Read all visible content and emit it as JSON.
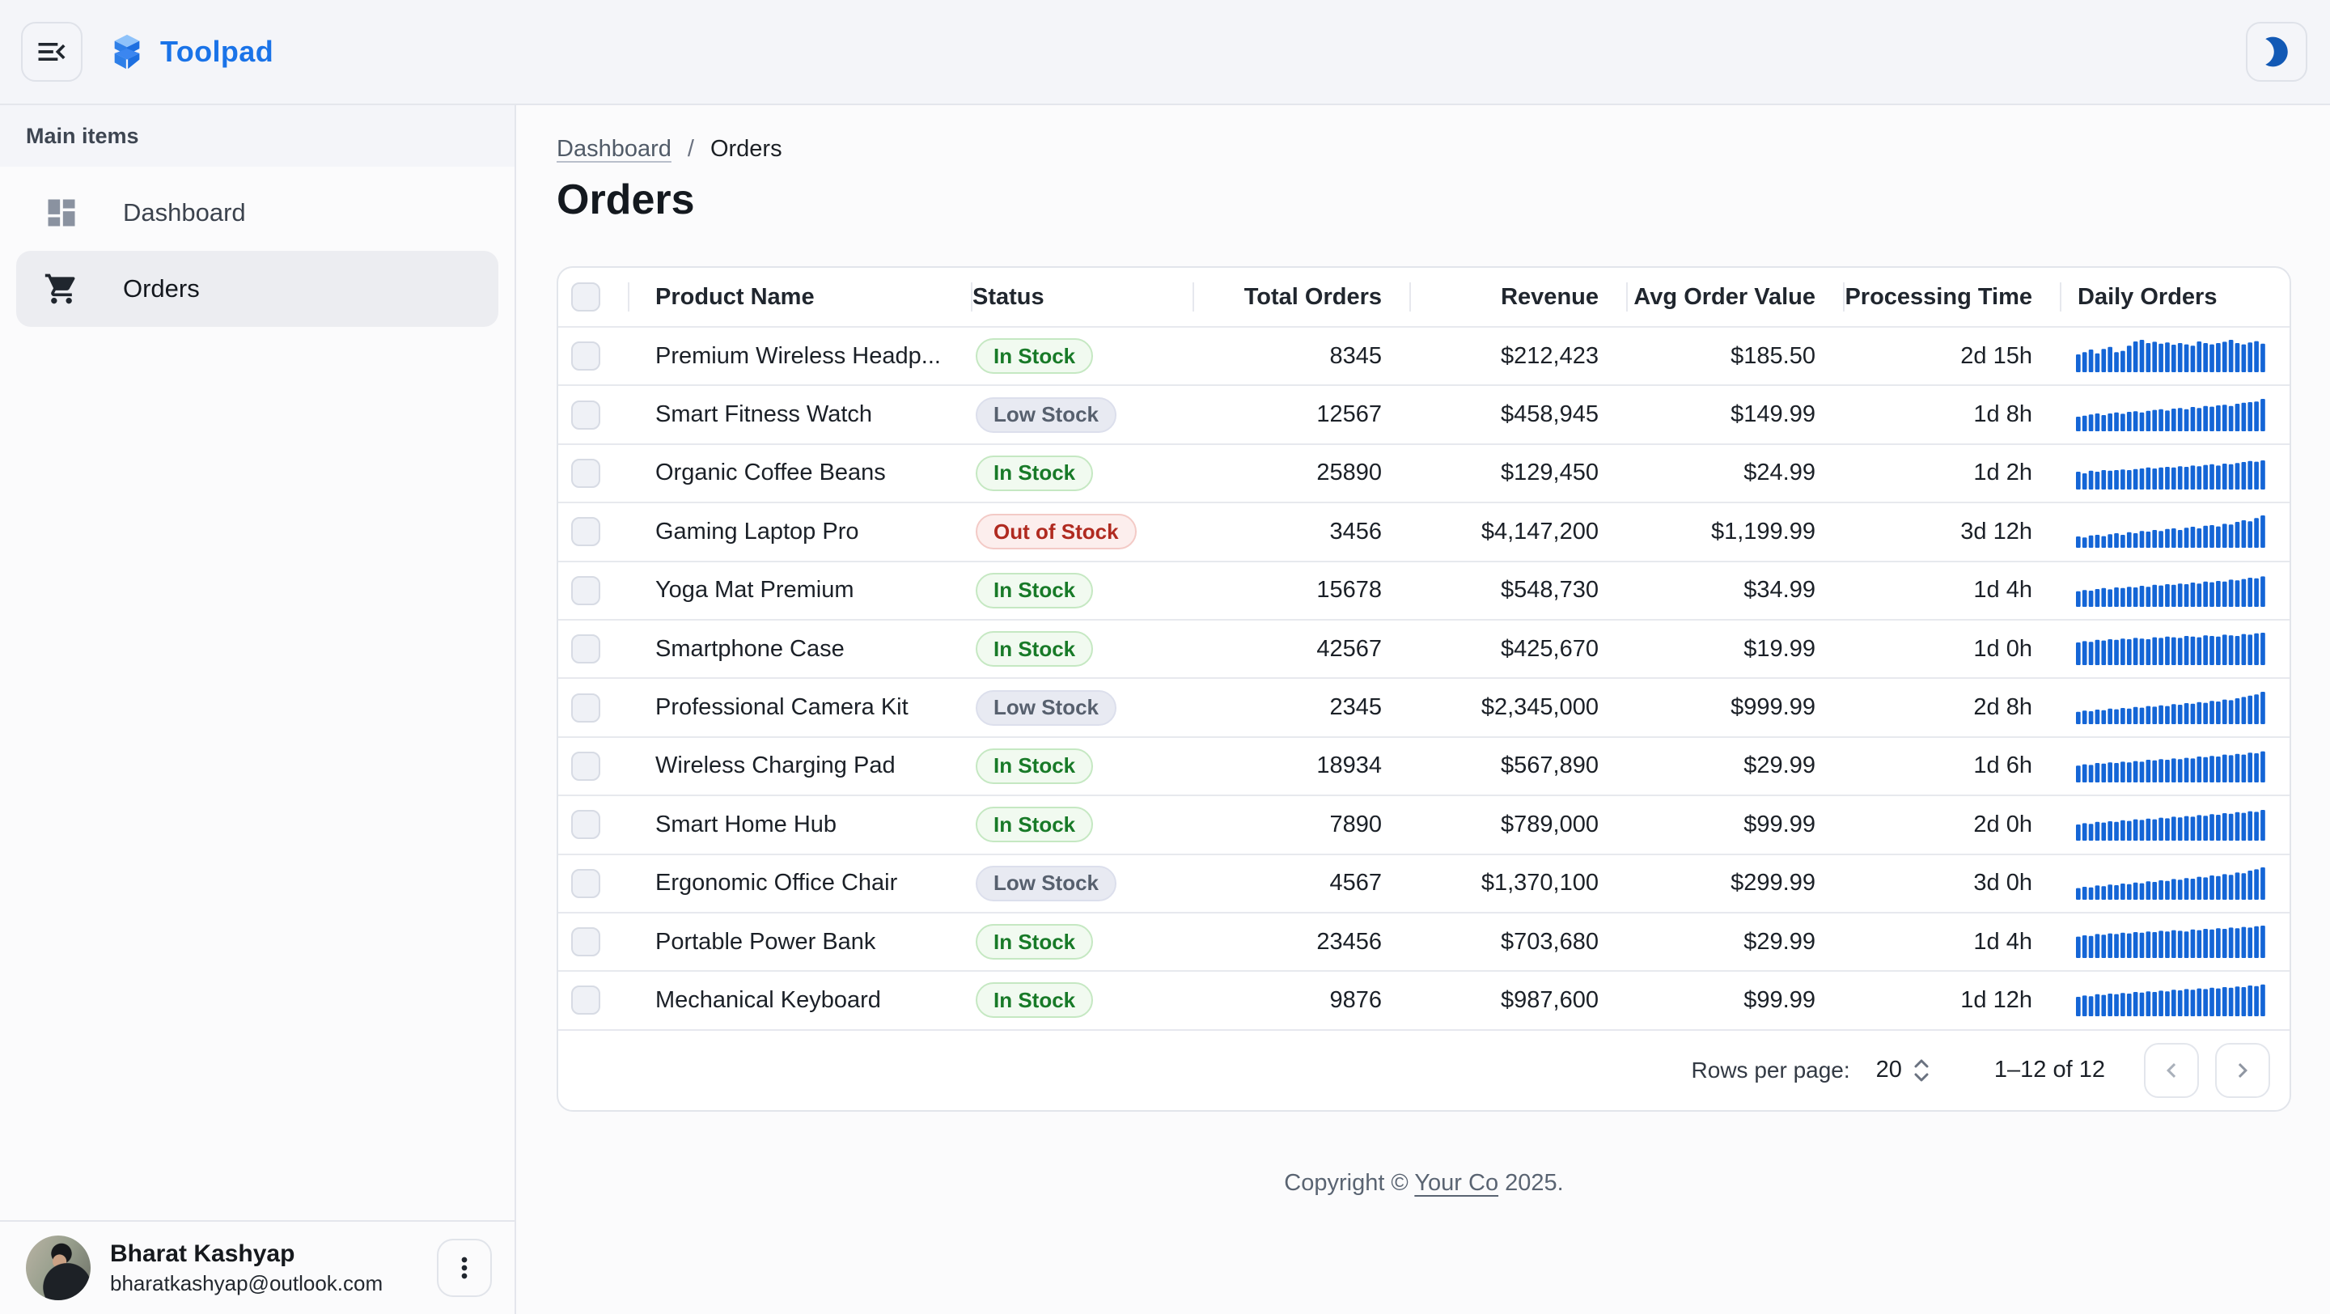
{
  "colors": {
    "accent_blue": "#1A73E8",
    "spark_blue": "#1465D6",
    "moon_blue": "#1259B5",
    "chip_success_text": "#187A28",
    "chip_neutral_text": "#57606E",
    "chip_error_text": "#B02A20"
  },
  "header": {
    "app_name": "Toolpad",
    "menu_icon": "menu-open-icon",
    "logo_icon": "toolpad-blocks-icon",
    "theme_icon": "moon-icon"
  },
  "sidebar": {
    "subheader": "Main items",
    "items": [
      {
        "label": "Dashboard",
        "icon": "dashboard-icon",
        "selected": false
      },
      {
        "label": "Orders",
        "icon": "shopping-cart-icon",
        "selected": true
      }
    ]
  },
  "user": {
    "name": "Bharat Kashyap",
    "email": "bharatkashyap@outlook.com",
    "menu_icon": "more-vert-icon"
  },
  "page": {
    "breadcrumb_parent": "Dashboard",
    "breadcrumb_separator": "/",
    "breadcrumb_current": "Orders",
    "title": "Orders"
  },
  "table": {
    "columns": [
      {
        "key": "name",
        "label": "Product Name",
        "align": "left"
      },
      {
        "key": "status",
        "label": "Status",
        "align": "left"
      },
      {
        "key": "total",
        "label": "Total Orders",
        "align": "right"
      },
      {
        "key": "revenue",
        "label": "Revenue",
        "align": "right"
      },
      {
        "key": "avg",
        "label": "Avg Order Value",
        "align": "right"
      },
      {
        "key": "time",
        "label": "Processing Time",
        "align": "right"
      },
      {
        "key": "daily",
        "label": "Daily Orders",
        "align": "daily"
      }
    ],
    "rows": [
      {
        "name": "Premium Wireless Headp...",
        "status": "In Stock",
        "variant": "success",
        "total": "8345",
        "revenue": "$212,423",
        "avg": "$185.50",
        "time": "2d 15h",
        "spark": [
          0.55,
          0.62,
          0.7,
          0.58,
          0.72,
          0.78,
          0.62,
          0.66,
          0.82,
          0.95,
          1.0,
          0.9,
          0.94,
          0.88,
          0.92,
          0.85,
          0.9,
          0.86,
          0.82,
          0.95,
          0.9,
          0.86,
          0.9,
          0.94,
          1.0,
          0.9,
          0.86,
          0.92,
          0.96,
          0.88
        ]
      },
      {
        "name": "Smart Fitness Watch",
        "status": "Low Stock",
        "variant": "neutral",
        "total": "12567",
        "revenue": "$458,945",
        "avg": "$149.99",
        "time": "1d 8h",
        "spark": [
          0.45,
          0.48,
          0.52,
          0.55,
          0.5,
          0.55,
          0.58,
          0.54,
          0.6,
          0.62,
          0.58,
          0.63,
          0.66,
          0.68,
          0.64,
          0.7,
          0.72,
          0.68,
          0.75,
          0.72,
          0.78,
          0.76,
          0.8,
          0.82,
          0.78,
          0.85,
          0.88,
          0.9,
          0.92,
          1.0
        ]
      },
      {
        "name": "Organic Coffee Beans",
        "status": "In Stock",
        "variant": "success",
        "total": "25890",
        "revenue": "$129,450",
        "avg": "$24.99",
        "time": "1d 2h",
        "spark": [
          0.55,
          0.5,
          0.58,
          0.55,
          0.6,
          0.58,
          0.6,
          0.62,
          0.6,
          0.63,
          0.65,
          0.68,
          0.65,
          0.68,
          0.7,
          0.68,
          0.72,
          0.7,
          0.74,
          0.72,
          0.76,
          0.78,
          0.74,
          0.8,
          0.78,
          0.82,
          0.85,
          0.88,
          0.86,
          0.9
        ]
      },
      {
        "name": "Gaming Laptop Pro",
        "status": "Out of Stock",
        "variant": "error",
        "total": "3456",
        "revenue": "$4,147,200",
        "avg": "$1,199.99",
        "time": "3d 12h",
        "spark": [
          0.35,
          0.32,
          0.38,
          0.4,
          0.36,
          0.42,
          0.45,
          0.4,
          0.48,
          0.45,
          0.52,
          0.5,
          0.55,
          0.52,
          0.58,
          0.6,
          0.55,
          0.62,
          0.65,
          0.6,
          0.68,
          0.7,
          0.66,
          0.74,
          0.72,
          0.8,
          0.85,
          0.82,
          0.92,
          1.0
        ]
      },
      {
        "name": "Yoga Mat Premium",
        "status": "In Stock",
        "variant": "success",
        "total": "15678",
        "revenue": "$548,730",
        "avg": "$34.99",
        "time": "1d 4h",
        "spark": [
          0.48,
          0.52,
          0.5,
          0.55,
          0.58,
          0.54,
          0.6,
          0.58,
          0.62,
          0.6,
          0.65,
          0.62,
          0.68,
          0.66,
          0.7,
          0.68,
          0.72,
          0.7,
          0.75,
          0.72,
          0.78,
          0.76,
          0.8,
          0.78,
          0.84,
          0.82,
          0.86,
          0.9,
          0.88,
          0.94
        ]
      },
      {
        "name": "Smartphone Case",
        "status": "In Stock",
        "variant": "success",
        "total": "42567",
        "revenue": "$425,670",
        "avg": "$19.99",
        "time": "1d 0h",
        "spark": [
          0.7,
          0.74,
          0.72,
          0.78,
          0.76,
          0.8,
          0.78,
          0.82,
          0.8,
          0.84,
          0.82,
          0.8,
          0.86,
          0.84,
          0.88,
          0.86,
          0.84,
          0.9,
          0.88,
          0.86,
          0.92,
          0.9,
          0.88,
          0.94,
          0.92,
          0.9,
          0.96,
          0.94,
          0.98,
          1.0
        ]
      },
      {
        "name": "Professional Camera Kit",
        "status": "Low Stock",
        "variant": "neutral",
        "total": "2345",
        "revenue": "$2,345,000",
        "avg": "$999.99",
        "time": "2d 8h",
        "spark": [
          0.38,
          0.42,
          0.4,
          0.45,
          0.43,
          0.48,
          0.46,
          0.5,
          0.48,
          0.53,
          0.51,
          0.56,
          0.54,
          0.58,
          0.56,
          0.62,
          0.6,
          0.65,
          0.63,
          0.68,
          0.66,
          0.72,
          0.7,
          0.76,
          0.74,
          0.8,
          0.84,
          0.88,
          0.92,
          1.0
        ]
      },
      {
        "name": "Wireless Charging Pad",
        "status": "In Stock",
        "variant": "success",
        "total": "18934",
        "revenue": "$567,890",
        "avg": "$29.99",
        "time": "1d 6h",
        "spark": [
          0.52,
          0.56,
          0.54,
          0.6,
          0.58,
          0.62,
          0.6,
          0.64,
          0.62,
          0.66,
          0.64,
          0.7,
          0.68,
          0.72,
          0.7,
          0.74,
          0.72,
          0.76,
          0.74,
          0.8,
          0.78,
          0.82,
          0.8,
          0.86,
          0.84,
          0.88,
          0.86,
          0.92,
          0.9,
          0.96
        ]
      },
      {
        "name": "Smart Home Hub",
        "status": "In Stock",
        "variant": "success",
        "total": "7890",
        "revenue": "$789,000",
        "avg": "$99.99",
        "time": "2d 0h",
        "spark": [
          0.5,
          0.54,
          0.52,
          0.58,
          0.56,
          0.6,
          0.58,
          0.63,
          0.61,
          0.66,
          0.64,
          0.68,
          0.66,
          0.71,
          0.69,
          0.74,
          0.72,
          0.76,
          0.74,
          0.79,
          0.77,
          0.82,
          0.8,
          0.85,
          0.83,
          0.88,
          0.86,
          0.91,
          0.89,
          0.95
        ]
      },
      {
        "name": "Ergonomic Office Chair",
        "status": "Low Stock",
        "variant": "neutral",
        "total": "4567",
        "revenue": "$1,370,100",
        "avg": "$299.99",
        "time": "3d 0h",
        "spark": [
          0.36,
          0.4,
          0.38,
          0.44,
          0.42,
          0.47,
          0.45,
          0.5,
          0.48,
          0.53,
          0.51,
          0.57,
          0.55,
          0.6,
          0.58,
          0.64,
          0.62,
          0.67,
          0.65,
          0.71,
          0.69,
          0.75,
          0.73,
          0.79,
          0.77,
          0.84,
          0.82,
          0.9,
          0.94,
          1.0
        ]
      },
      {
        "name": "Portable Power Bank",
        "status": "In Stock",
        "variant": "success",
        "total": "23456",
        "revenue": "$703,680",
        "avg": "$29.99",
        "time": "1d 4h",
        "spark": [
          0.66,
          0.7,
          0.68,
          0.74,
          0.72,
          0.76,
          0.74,
          0.78,
          0.76,
          0.8,
          0.78,
          0.82,
          0.8,
          0.84,
          0.82,
          0.86,
          0.84,
          0.82,
          0.88,
          0.86,
          0.9,
          0.88,
          0.92,
          0.9,
          0.94,
          0.92,
          0.96,
          0.94,
          0.98,
          1.0
        ]
      },
      {
        "name": "Mechanical Keyboard",
        "status": "In Stock",
        "variant": "success",
        "total": "9876",
        "revenue": "$987,600",
        "avg": "$99.99",
        "time": "1d 12h",
        "spark": [
          0.6,
          0.64,
          0.62,
          0.68,
          0.66,
          0.7,
          0.68,
          0.72,
          0.7,
          0.75,
          0.73,
          0.77,
          0.75,
          0.79,
          0.77,
          0.82,
          0.8,
          0.84,
          0.82,
          0.86,
          0.84,
          0.88,
          0.86,
          0.9,
          0.88,
          0.92,
          0.9,
          0.95,
          0.93,
          0.98
        ]
      }
    ]
  },
  "pagination": {
    "rows_per_page_label": "Rows per page:",
    "rows_per_page_value": "20",
    "range_label": "1–12 of 12",
    "prev_icon": "chevron-left-icon",
    "next_icon": "chevron-right-icon"
  },
  "footer": {
    "prefix": "Copyright © ",
    "link": "Your Co",
    "suffix": " 2025."
  }
}
